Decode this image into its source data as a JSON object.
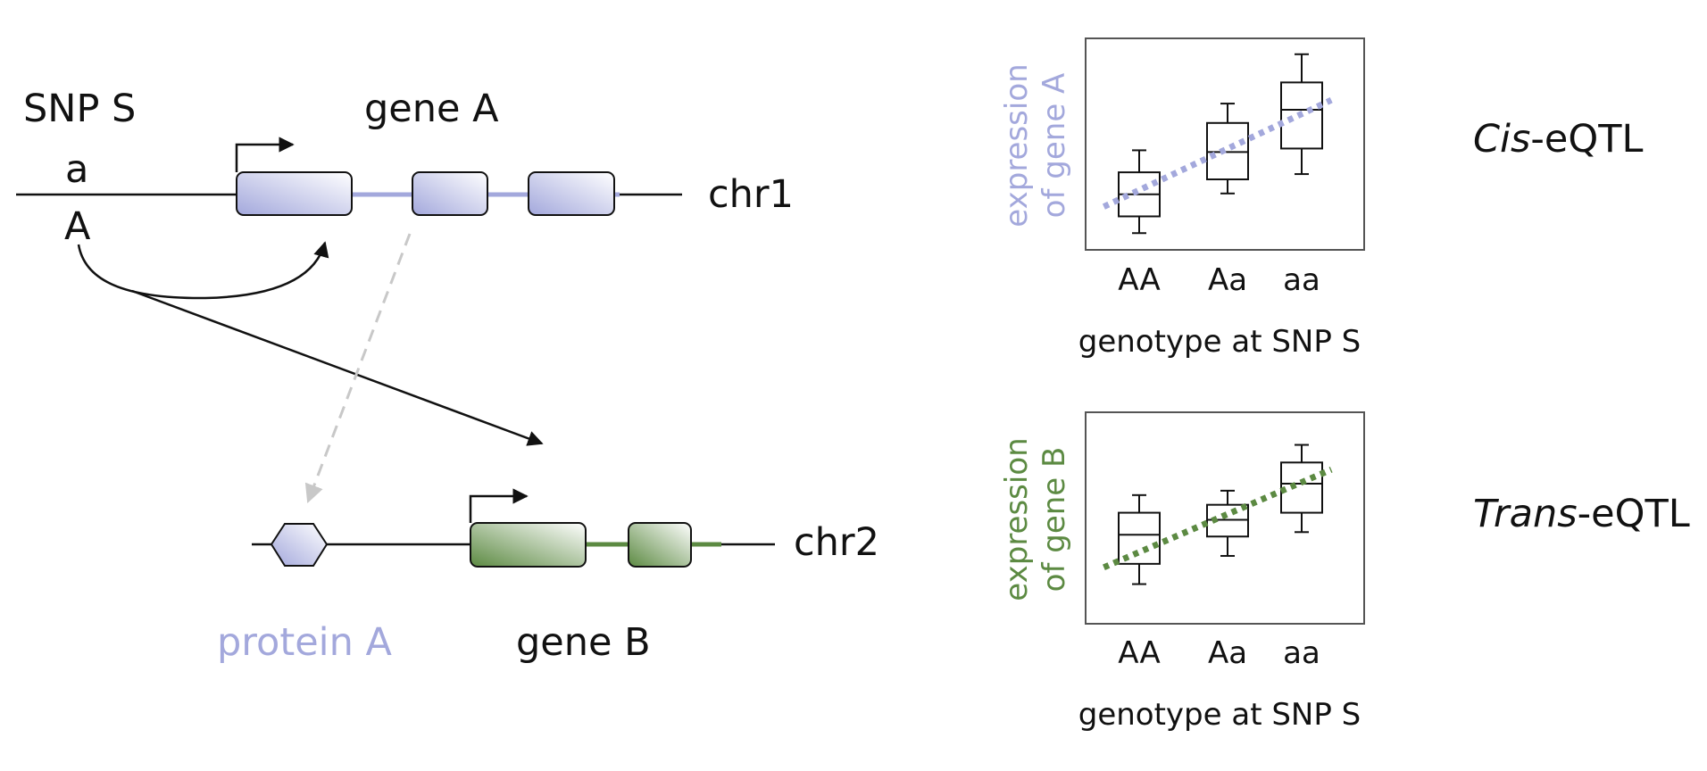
{
  "colors": {
    "gene_a": "#a3a8dc",
    "gene_b": "#5c8a42",
    "protein_arrow": "#c8c8c8",
    "line": "#111111"
  },
  "labels": {
    "snp": "SNP S",
    "allele_top": "a",
    "allele_bottom": "A",
    "gene_a": "gene A",
    "chr1": "chr1",
    "chr2": "chr2",
    "protein_a": "protein A",
    "gene_b": "gene B",
    "cis_prefix": "Cis",
    "cis_suffix": "-eQTL",
    "trans_prefix": "Trans",
    "trans_suffix": "-eQTL"
  },
  "chart_data": [
    {
      "type": "box",
      "xlabel": "genotype at SNP S",
      "ylabel_line1": "expression",
      "ylabel_line2": "of gene A",
      "categories": [
        "AA",
        "Aa",
        "aa"
      ],
      "boxes": [
        {
          "min": 1.9,
          "q1": 3.8,
          "median": 6.3,
          "q3": 8.8,
          "max": 11.3
        },
        {
          "min": 6.4,
          "q1": 8.0,
          "median": 11.1,
          "q3": 14.4,
          "max": 16.6
        },
        {
          "min": 8.6,
          "q1": 11.5,
          "median": 15.9,
          "q3": 19.0,
          "max": 22.2
        }
      ],
      "trend": {
        "from": [
          0.6,
          4.9
        ],
        "to": [
          3.4,
          17.0
        ]
      },
      "ylim": [
        0,
        24
      ],
      "trend_color": "#a3a8dc",
      "label_color": "#a3a8dc"
    },
    {
      "type": "box",
      "xlabel": "genotype at SNP S",
      "ylabel_line1": "expression",
      "ylabel_line2": "of gene B",
      "categories": [
        "AA",
        "Aa",
        "aa"
      ],
      "boxes": [
        {
          "min": 4.5,
          "q1": 6.8,
          "median": 10.1,
          "q3": 12.6,
          "max": 14.6
        },
        {
          "min": 7.7,
          "q1": 9.9,
          "median": 11.8,
          "q3": 13.5,
          "max": 15.1
        },
        {
          "min": 10.4,
          "q1": 12.6,
          "median": 15.9,
          "q3": 18.3,
          "max": 20.3
        }
      ],
      "trend": {
        "from": [
          0.6,
          6.4
        ],
        "to": [
          3.4,
          17.5
        ]
      },
      "ylim": [
        0,
        24
      ],
      "trend_color": "#5c8a42",
      "label_color": "#5c8a42"
    }
  ]
}
